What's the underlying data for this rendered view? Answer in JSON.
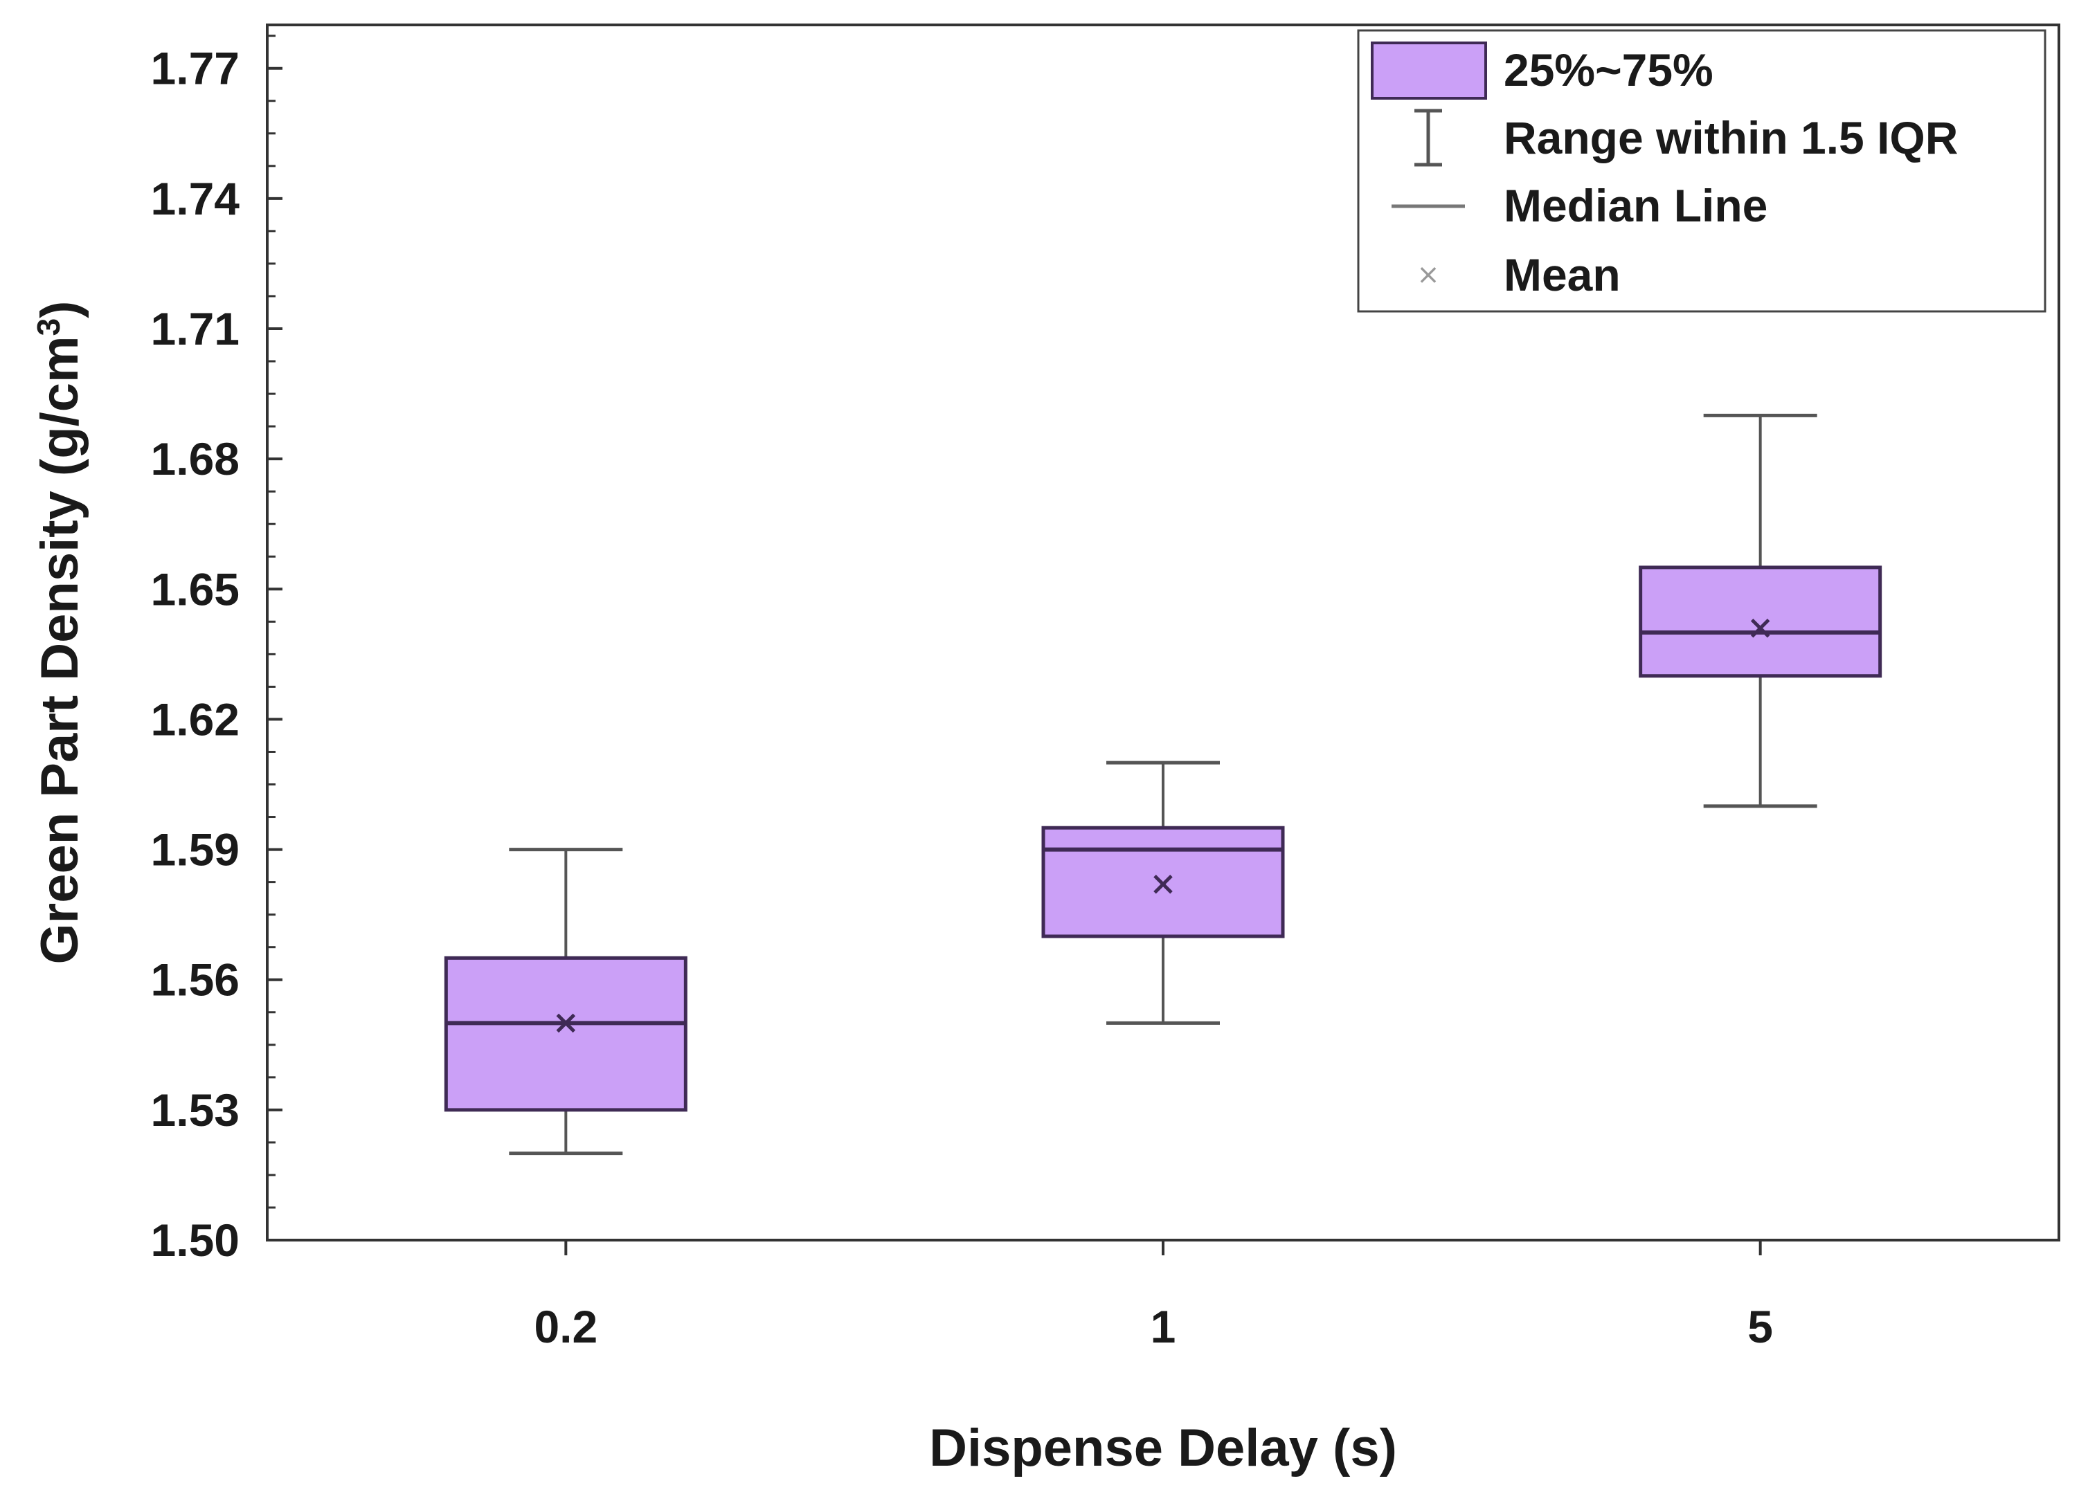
{
  "chart_data": {
    "type": "box",
    "xlabel": "Dispense Delay (s)",
    "ylabel": "Green Part Density (g/cm",
    "ylabel_sup": "3",
    "ylabel_close": ")",
    "ylim": [
      1.5,
      1.78
    ],
    "yticks": [
      "1.50",
      "1.53",
      "1.56",
      "1.59",
      "1.62",
      "1.65",
      "1.68",
      "1.71",
      "1.74",
      "1.77"
    ],
    "categories": [
      "0.2",
      "1",
      "5"
    ],
    "boxes": [
      {
        "category": "0.2",
        "whisker_low": 1.52,
        "q1": 1.53,
        "median": 1.55,
        "q3": 1.565,
        "whisker_high": 1.59,
        "mean": 1.55
      },
      {
        "category": "1",
        "whisker_low": 1.55,
        "q1": 1.57,
        "median": 1.59,
        "q3": 1.595,
        "whisker_high": 1.61,
        "mean": 1.582
      },
      {
        "category": "5",
        "whisker_low": 1.6,
        "q1": 1.63,
        "median": 1.64,
        "q3": 1.655,
        "whisker_high": 1.69,
        "mean": 1.641
      }
    ],
    "legend": {
      "position": "top-right",
      "entries": [
        {
          "key": "box",
          "label": "25%~75%"
        },
        {
          "key": "whisker",
          "label": "Range within 1.5 IQR"
        },
        {
          "key": "median",
          "label": "Median Line"
        },
        {
          "key": "mean",
          "label": "Mean"
        }
      ]
    },
    "colors": {
      "box_fill": "#cba0f7",
      "box_edge": "#3f2a55",
      "whisker": "#555555",
      "axis": "#333333",
      "mean_marker": "#3f2a55"
    }
  }
}
